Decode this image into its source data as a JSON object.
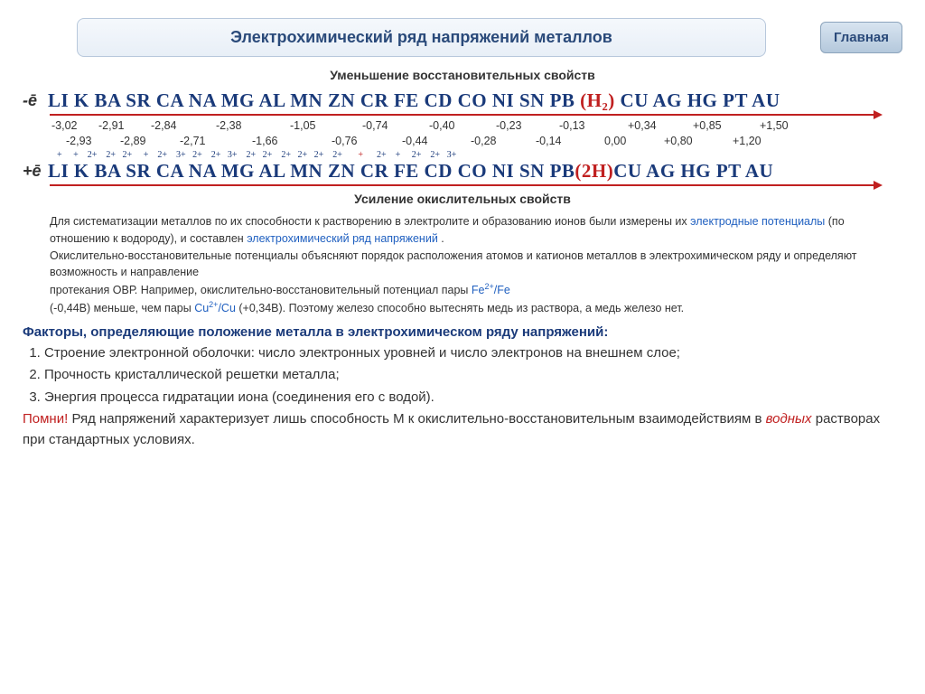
{
  "header": {
    "title": "Электрохимический ряд напряжений металлов",
    "main_button": "Главная"
  },
  "subtitle_top": "Уменьшение восстановительных свойств",
  "subtitle_bottom": "Усиление окислительных свойств",
  "e_minus": "-ē",
  "e_plus": "+ē",
  "series_atoms_pre": "LI K BA SR CA NA MG AL MN ZN CR FE CD CO NI SN PB ",
  "series_atoms_h2": "(H₂)",
  "series_atoms_post": " CU AG HG PT AU",
  "series_ions_pre": "LI K BA SR CA NA MG AL MN ZN CR FE CD CO NI SN PB",
  "series_ions_h2": "(2H)",
  "series_ions_post": "CU AG HG PT AU",
  "potentials_row1": [
    "-3,02",
    "-2,91",
    "-2,84",
    "-2,38",
    "-1,05",
    "-0,74",
    "-0,40",
    "-0,23",
    "-0,13",
    "+0,34",
    "+0,85",
    "+1,50"
  ],
  "potentials_row2": [
    "-2,93",
    "-2,89",
    "-2,71",
    "-1,66",
    "-0,76",
    "-0,44",
    "-0,28",
    "-0,14",
    "0,00",
    "+0,80",
    "+1,20"
  ],
  "charges_pre": "+     +    2+    2+   2+     +    2+    3+   2+    2+   3+    2+   2+    2+   2+   2+    2+",
  "charges_h": "       +",
  "charges_post": "      2+    +     2+    2+   3+",
  "paragraph": {
    "p1a": "Для систематизации металлов по их способности к растворению в электролите и образованию ионов были измерены их ",
    "p1b": "электродные потенциалы",
    "p1c": " (по отношению к водороду), и составлен ",
    "p1d": "электрохимический ряд напряжений",
    "p1e": " .",
    "p2": "Окислительно-восстановительные потенциалы объясняют порядок расположения атомов и катионов металлов в электрохимическом ряду и определяют возможность и направление",
    "p3a": "протекания ОВР. Например, окислительно-восстановительный потенциал пары ",
    "p3b": "Fe",
    "p3c": "/Fe",
    "p4a": "(-0,44В) меньше, чем пары ",
    "p4b": "Cu",
    "p4c": "/Cu",
    "p4d": " (+0,34В). Поэтому железо способно вытеснять медь из раствора, а медь железо нет."
  },
  "factors_title": "Факторы, определяющие положение металла в электрохимическом ряду напряжений:",
  "factors": [
    "Строение электронной оболочки: число электронных уровней и число электронов на внешнем слое;",
    "Прочность кристаллической решетки металла;",
    "Энергия процесса гидратации иона (соединения его с водой)."
  ],
  "remember": {
    "label": "Помни!",
    "text1": " Ряд напряжений характеризует лишь способность М к окислительно-восстановительным взаимодействиям в ",
    "water": "водных",
    "text2": " растворах при стандартных условиях."
  },
  "styling": {
    "title_color": "#2a4a7a",
    "element_color": "#1a3a7a",
    "accent_red": "#c02020",
    "link_blue": "#2060c0",
    "background": "#ffffff"
  }
}
